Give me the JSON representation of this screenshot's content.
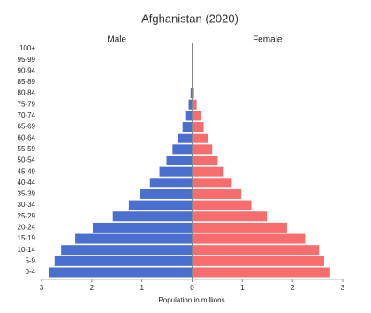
{
  "chart_data": {
    "type": "pyramid",
    "title": "Afghanistan (2020)",
    "x_label": "Population in millions",
    "categories": [
      "0-4",
      "5-9",
      "10-14",
      "15-19",
      "20-24",
      "25-29",
      "30-34",
      "35-39",
      "40-44",
      "45-49",
      "50-54",
      "55-59",
      "60-64",
      "65-69",
      "70-74",
      "75-79",
      "80-84",
      "85-89",
      "90-94",
      "95-99",
      "100+"
    ],
    "series": [
      {
        "name": "Male",
        "color": "#4a6fcf",
        "side": "left",
        "values": [
          2.86,
          2.74,
          2.61,
          2.33,
          1.98,
          1.58,
          1.26,
          1.04,
          0.84,
          0.65,
          0.51,
          0.39,
          0.28,
          0.19,
          0.12,
          0.07,
          0.03,
          0.005,
          0,
          0,
          0
        ]
      },
      {
        "name": "Female",
        "color": "#f76d6d",
        "side": "right",
        "values": [
          2.75,
          2.63,
          2.53,
          2.25,
          1.89,
          1.49,
          1.18,
          0.98,
          0.79,
          0.63,
          0.51,
          0.4,
          0.32,
          0.23,
          0.17,
          0.09,
          0.04,
          0.005,
          0,
          0,
          0
        ]
      }
    ],
    "xlim": [
      -3,
      3
    ],
    "xticks": [
      {
        "value": -3,
        "label": "3"
      },
      {
        "value": -2,
        "label": "2"
      },
      {
        "value": -1,
        "label": "1"
      },
      0,
      1,
      2,
      3
    ]
  }
}
